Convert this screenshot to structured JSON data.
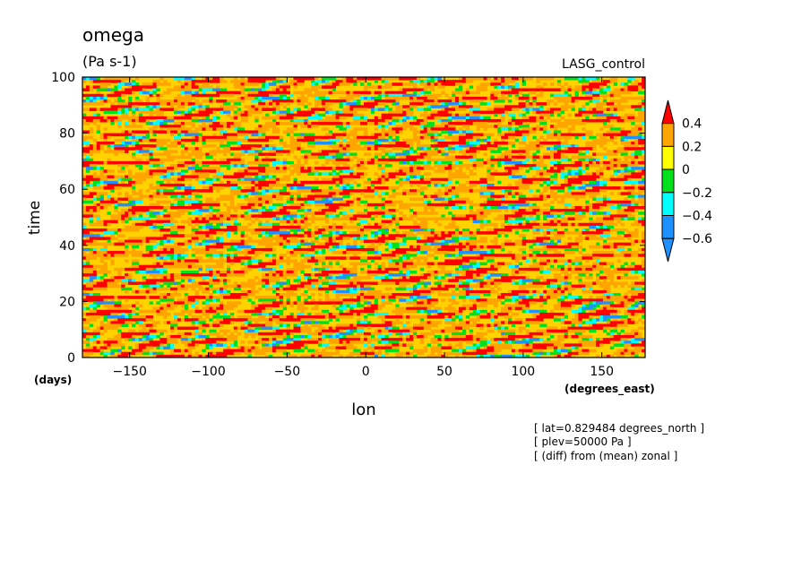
{
  "chart_data": {
    "type": "heatmap",
    "title": "omega",
    "units": "(Pa s-1)",
    "dataset": "LASG_control",
    "xlabel": "lon",
    "ylabel": "time",
    "x_units": "(degrees_east)",
    "y_units": "(days)",
    "xlim": [
      -180,
      177.5
    ],
    "ylim": [
      0,
      100
    ],
    "x_ticks": [
      -150,
      -100,
      -50,
      0,
      50,
      100,
      150
    ],
    "x_tick_labels": [
      "−150",
      "−100",
      "−50",
      "0",
      "50",
      "100",
      "150"
    ],
    "y_ticks": [
      0,
      20,
      40,
      60,
      80,
      100
    ],
    "y_tick_labels": [
      "0",
      "20",
      "40",
      "60",
      "80",
      "100"
    ],
    "grid": false,
    "colorbar": {
      "levels": [
        -0.6,
        -0.4,
        -0.2,
        0,
        0.2,
        0.4
      ],
      "level_labels": [
        "−0.6",
        "−0.4",
        "−0.2",
        "0",
        "0.2",
        "0.4"
      ],
      "colors": [
        "#1e90ff",
        "#1e90ff",
        "#00ffff",
        "#00e11e",
        "#ffff00",
        "#ffa500",
        "#ff0000"
      ]
    },
    "field_description": "omega anomaly (diff from zonal mean) at lat=0.83N, 500 hPa; dominated by yellow/orange (0 to 0.4) with scattered blue/cyan negative patches elongated eastward-tilted",
    "annotations": [
      "[ lat=0.829484 degrees_north ]",
      "[ plev=50000 Pa ]",
      "[ (diff) from (mean) zonal ]"
    ]
  }
}
